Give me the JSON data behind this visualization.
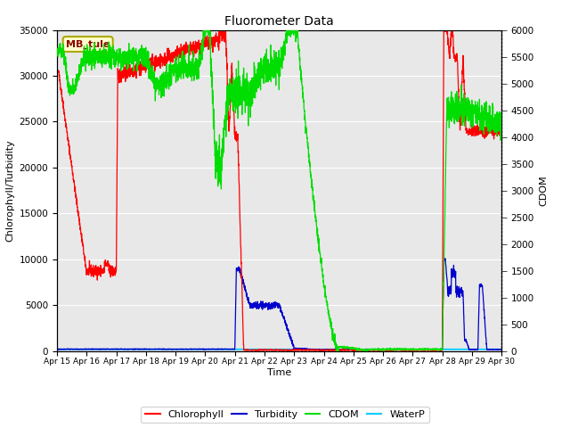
{
  "title": "Fluorometer Data",
  "xlabel": "Time",
  "ylabel_left": "Chlorophyll/Turbidity",
  "ylabel_right": "CDOM",
  "station_label": "MB_tule",
  "ylim_left": [
    0,
    35000
  ],
  "ylim_right": [
    0,
    6000
  ],
  "x_tick_labels": [
    "Apr 15",
    "Apr 16",
    "Apr 17",
    "Apr 18",
    "Apr 19",
    "Apr 20",
    "Apr 21",
    "Apr 22",
    "Apr 23",
    "Apr 24",
    "Apr 25",
    "Apr 26",
    "Apr 27",
    "Apr 28",
    "Apr 29",
    "Apr 30"
  ],
  "colors": {
    "chlorophyll": "#ff0000",
    "turbidity": "#0000cc",
    "cdom": "#00dd00",
    "waterp": "#00ccff",
    "background": "#e8e8e8",
    "grid": "#ffffff"
  },
  "legend_entries": [
    "Chlorophyll",
    "Turbidity",
    "CDOM",
    "WaterP"
  ]
}
